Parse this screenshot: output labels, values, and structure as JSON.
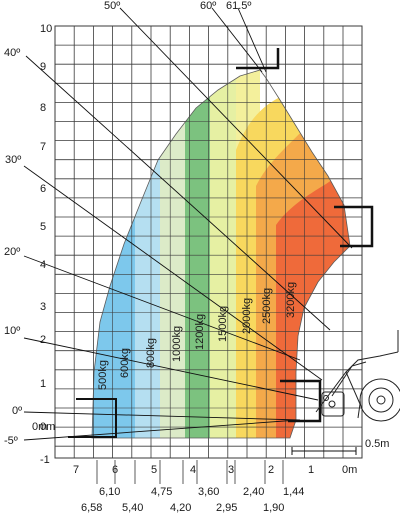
{
  "chart_data": {
    "type": "load_chart",
    "y_axis": {
      "ticks": [
        "10",
        "9",
        "8",
        "7",
        "6",
        "5",
        "4",
        "3",
        "2",
        "1",
        "0m",
        "-1"
      ],
      "extra_label": "0m"
    },
    "x_axis": {
      "ticks": [
        "7",
        "6",
        "5",
        "4",
        "3",
        "2",
        "1",
        "0m"
      ]
    },
    "angles": [
      "50º",
      "60º",
      "61.5º",
      "40º",
      "30º",
      "20º",
      "10º",
      "0º",
      "-5º"
    ],
    "load_zones": [
      {
        "label": "500kg",
        "color": "#7dc8ec"
      },
      {
        "label": "600kg",
        "color": "#b5dff1"
      },
      {
        "label": "800kg",
        "color": "#dcebc8"
      },
      {
        "label": "1000kg",
        "color": "#7cc27f"
      },
      {
        "label": "1200kg",
        "color": "#e6f0a3"
      },
      {
        "label": "1500kg",
        "color": "#f4f09c"
      },
      {
        "label": "2000kg",
        "color": "#f8d85e"
      },
      {
        "label": "2500kg",
        "color": "#f4a94a"
      },
      {
        "label": "3200kg",
        "color": "#ef6a3a"
      }
    ],
    "reach_labels_top": [
      "6,10",
      "4,75",
      "3,60",
      "2,40",
      "1,44"
    ],
    "reach_labels_bottom": [
      "6,58",
      "5,40",
      "4,20",
      "2,95",
      "1,90"
    ],
    "scale_label": "0.5m"
  }
}
